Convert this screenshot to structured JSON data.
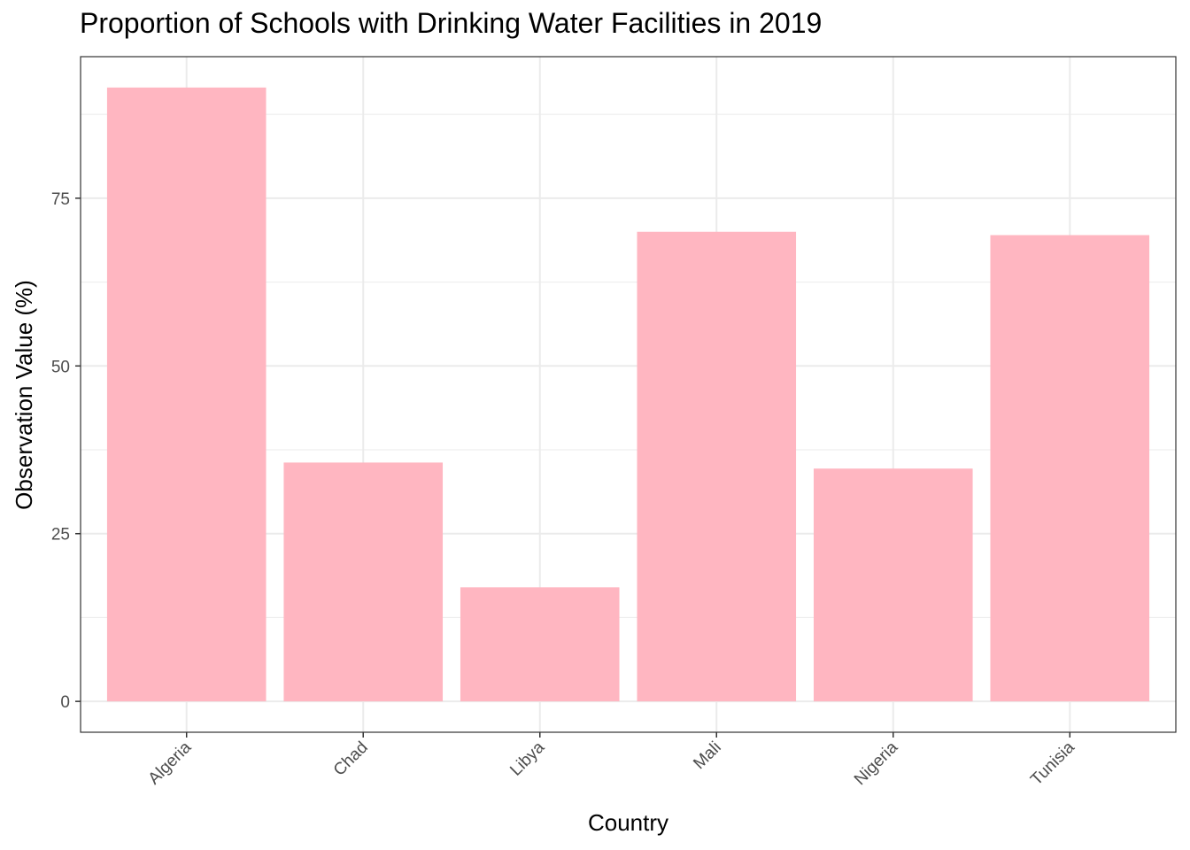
{
  "chart_data": {
    "type": "bar",
    "title": "Proportion of Schools with Drinking Water Facilities in 2019",
    "xlabel": "Country",
    "ylabel": "Observation Value (%)",
    "categories": [
      "Algeria",
      "Chad",
      "Libya",
      "Mali",
      "Nigeria",
      "Tunisia"
    ],
    "values": [
      91.5,
      35.6,
      17.0,
      70.0,
      34.7,
      69.5
    ],
    "ylim": [
      -4.6,
      96.1
    ],
    "yticks": [
      0,
      25,
      50,
      75
    ],
    "grid": true,
    "bar_color": "#FFB6C1",
    "panel_border_color": "#333333",
    "grid_color": "#EBEBEB"
  }
}
